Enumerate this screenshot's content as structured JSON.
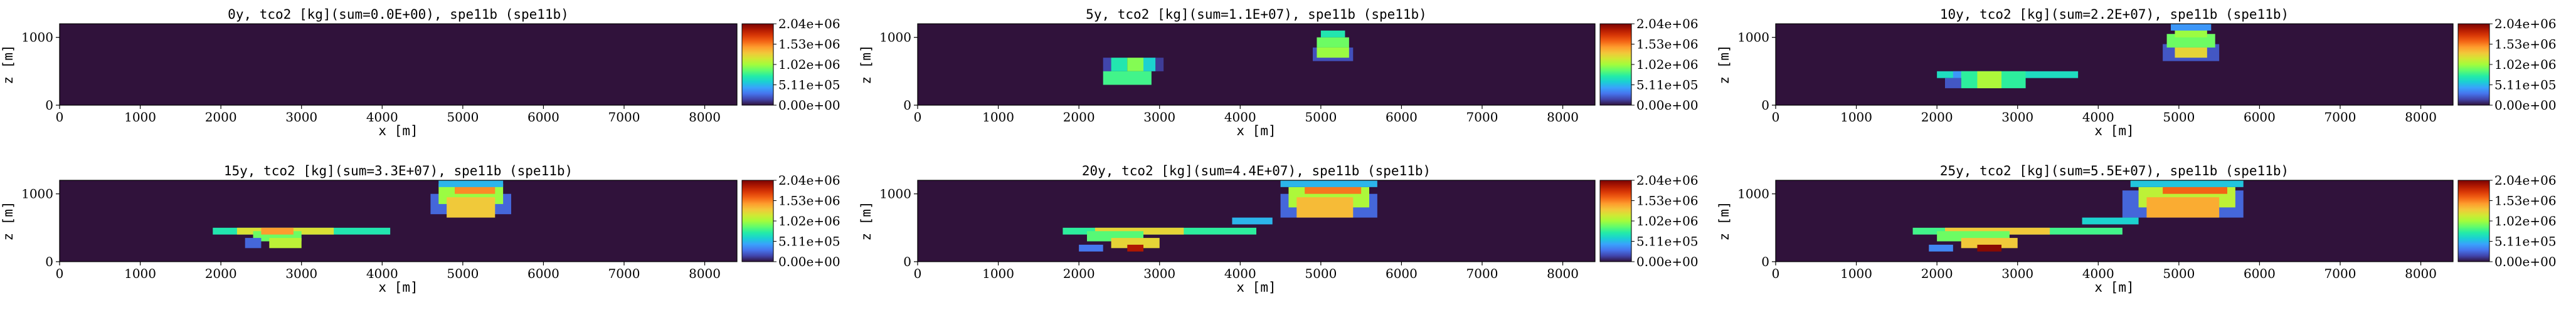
{
  "figure": {
    "colormap": [
      "#30123b",
      "#4145ab",
      "#4675ed",
      "#39a2fc",
      "#1bcfd4",
      "#24eca6",
      "#61fc6c",
      "#a4fc3b",
      "#d1e834",
      "#f3c63a",
      "#fe9b2d",
      "#f36315",
      "#d93806",
      "#b11901",
      "#7a0403"
    ],
    "background_color": "#30123b"
  },
  "chart_data": [
    {
      "type": "heatmap",
      "title": "0y, tco2 [kg](sum=0.0E+00), spe11b (spe11b)",
      "xlabel": "x [m]",
      "ylabel": "z [m]",
      "xlim": [
        0,
        8400
      ],
      "ylim": [
        0,
        1200
      ],
      "xticks": [
        "0",
        "1000",
        "2000",
        "3000",
        "4000",
        "5000",
        "6000",
        "7000",
        "8000"
      ],
      "yticks": [
        "0",
        "1000"
      ],
      "colorbar": {
        "ticks": [
          "0.00e+00",
          "5.11e+05",
          "1.02e+06",
          "1.53e+06",
          "2.04e+06"
        ],
        "range": [
          0,
          2040000
        ]
      },
      "cells": []
    },
    {
      "type": "heatmap",
      "title": "5y, tco2 [kg](sum=1.1E+07), spe11b (spe11b)",
      "xlabel": "x [m]",
      "ylabel": "z [m]",
      "xlim": [
        0,
        8400
      ],
      "ylim": [
        0,
        1200
      ],
      "xticks": [
        "0",
        "1000",
        "2000",
        "3000",
        "4000",
        "5000",
        "6000",
        "7000",
        "8000"
      ],
      "yticks": [
        "0",
        "1000"
      ],
      "colorbar": {
        "ticks": [
          "0.00e+00",
          "5.11e+05",
          "1.02e+06",
          "1.53e+06",
          "2.04e+06"
        ],
        "range": [
          0,
          2040000
        ]
      },
      "cells": [
        [
          4900,
          650,
          500,
          200,
          180000
        ],
        [
          4950,
          850,
          400,
          150,
          900000
        ],
        [
          4950,
          700,
          400,
          150,
          1000000
        ],
        [
          5000,
          1000,
          300,
          100,
          700000
        ],
        [
          2300,
          500,
          100,
          200,
          150000
        ],
        [
          2400,
          500,
          200,
          200,
          700000
        ],
        [
          2600,
          500,
          200,
          200,
          950000
        ],
        [
          2800,
          500,
          150,
          200,
          600000
        ],
        [
          2950,
          500,
          100,
          200,
          120000
        ],
        [
          2300,
          300,
          600,
          200,
          800000
        ]
      ]
    },
    {
      "type": "heatmap",
      "title": "10y, tco2 [kg](sum=2.2E+07), spe11b (spe11b)",
      "xlabel": "x [m]",
      "ylabel": "z [m]",
      "xlim": [
        0,
        8400
      ],
      "ylim": [
        0,
        1200
      ],
      "xticks": [
        "0",
        "1000",
        "2000",
        "3000",
        "4000",
        "5000",
        "6000",
        "7000",
        "8000"
      ],
      "yticks": [
        "0",
        "1000"
      ],
      "colorbar": {
        "ticks": [
          "0.00e+00",
          "5.11e+05",
          "1.02e+06",
          "1.53e+06",
          "2.04e+06"
        ],
        "range": [
          0,
          2040000
        ]
      },
      "cells": [
        [
          4800,
          650,
          700,
          250,
          200000
        ],
        [
          4850,
          850,
          600,
          200,
          900000
        ],
        [
          4950,
          700,
          400,
          150,
          1250000
        ],
        [
          4950,
          1000,
          400,
          150,
          1000000
        ],
        [
          4900,
          1100,
          500,
          100,
          400000
        ],
        [
          2000,
          400,
          1750,
          100,
          650000
        ],
        [
          2200,
          400,
          300,
          100,
          400000
        ],
        [
          2300,
          250,
          800,
          250,
          750000
        ],
        [
          2500,
          250,
          300,
          250,
          1050000
        ],
        [
          2100,
          250,
          200,
          150,
          200000
        ]
      ]
    },
    {
      "type": "heatmap",
      "title": "15y, tco2 [kg](sum=3.3E+07), spe11b (spe11b)",
      "xlabel": "x [m]",
      "ylabel": "z [m]",
      "xlim": [
        0,
        8400
      ],
      "ylim": [
        0,
        1200
      ],
      "xticks": [
        "0",
        "1000",
        "2000",
        "3000",
        "4000",
        "5000",
        "6000",
        "7000",
        "8000"
      ],
      "yticks": [
        "0",
        "1000"
      ],
      "colorbar": {
        "ticks": [
          "0.00e+00",
          "5.11e+05",
          "1.02e+06",
          "1.53e+06",
          "2.04e+06"
        ],
        "range": [
          0,
          2040000
        ]
      },
      "cells": [
        [
          4600,
          700,
          1000,
          300,
          250000
        ],
        [
          4700,
          850,
          800,
          300,
          1000000
        ],
        [
          4800,
          650,
          600,
          300,
          1300000
        ],
        [
          4900,
          1000,
          500,
          150,
          1500000
        ],
        [
          4700,
          1100,
          800,
          100,
          500000
        ],
        [
          1900,
          400,
          2200,
          100,
          700000
        ],
        [
          2200,
          400,
          1200,
          100,
          1200000
        ],
        [
          2400,
          300,
          600,
          150,
          900000
        ],
        [
          2600,
          200,
          400,
          150,
          1100000
        ],
        [
          2300,
          200,
          200,
          150,
          250000
        ],
        [
          2500,
          400,
          400,
          100,
          1450000
        ]
      ]
    },
    {
      "type": "heatmap",
      "title": "20y, tco2 [kg](sum=4.4E+07), spe11b (spe11b)",
      "xlabel": "x [m]",
      "ylabel": "z [m]",
      "xlim": [
        0,
        8400
      ],
      "ylim": [
        0,
        1200
      ],
      "xticks": [
        "0",
        "1000",
        "2000",
        "3000",
        "4000",
        "5000",
        "6000",
        "7000",
        "8000"
      ],
      "yticks": [
        "0",
        "1000"
      ],
      "colorbar": {
        "ticks": [
          "0.00e+00",
          "5.11e+05",
          "1.02e+06",
          "1.53e+06",
          "2.04e+06"
        ],
        "range": [
          0,
          2040000
        ]
      },
      "cells": [
        [
          4500,
          650,
          1200,
          350,
          250000
        ],
        [
          4600,
          800,
          1000,
          300,
          1050000
        ],
        [
          4700,
          650,
          700,
          300,
          1350000
        ],
        [
          4800,
          1000,
          700,
          200,
          1550000
        ],
        [
          4500,
          1100,
          1200,
          100,
          500000
        ],
        [
          1800,
          400,
          2400,
          100,
          750000
        ],
        [
          2200,
          400,
          1100,
          100,
          1250000
        ],
        [
          3900,
          550,
          500,
          100,
          500000
        ],
        [
          2100,
          300,
          700,
          150,
          850000
        ],
        [
          2400,
          200,
          600,
          150,
          1250000
        ],
        [
          2600,
          150,
          200,
          100,
          1900000
        ],
        [
          2000,
          150,
          300,
          100,
          300000
        ]
      ]
    },
    {
      "type": "heatmap",
      "title": "25y, tco2 [kg](sum=5.5E+07), spe11b (spe11b)",
      "xlabel": "x [m]",
      "ylabel": "z [m]",
      "xlim": [
        0,
        8400
      ],
      "ylim": [
        0,
        1200
      ],
      "xticks": [
        "0",
        "1000",
        "2000",
        "3000",
        "4000",
        "5000",
        "6000",
        "7000",
        "8000"
      ],
      "yticks": [
        "0",
        "1000"
      ],
      "colorbar": {
        "ticks": [
          "0.00e+00",
          "5.11e+05",
          "1.02e+06",
          "1.53e+06",
          "2.04e+06"
        ],
        "range": [
          0,
          2040000
        ]
      },
      "cells": [
        [
          4300,
          650,
          1500,
          400,
          250000
        ],
        [
          4500,
          800,
          1200,
          300,
          1100000
        ],
        [
          4600,
          650,
          900,
          300,
          1400000
        ],
        [
          4800,
          1000,
          800,
          200,
          1600000
        ],
        [
          4400,
          1100,
          1400,
          100,
          550000
        ],
        [
          1700,
          400,
          2600,
          100,
          800000
        ],
        [
          2100,
          400,
          1300,
          100,
          1300000
        ],
        [
          3800,
          550,
          700,
          100,
          600000
        ],
        [
          2000,
          300,
          900,
          150,
          900000
        ],
        [
          2300,
          200,
          700,
          150,
          1300000
        ],
        [
          2500,
          150,
          300,
          100,
          2000000
        ],
        [
          1900,
          150,
          300,
          100,
          350000
        ]
      ]
    }
  ]
}
